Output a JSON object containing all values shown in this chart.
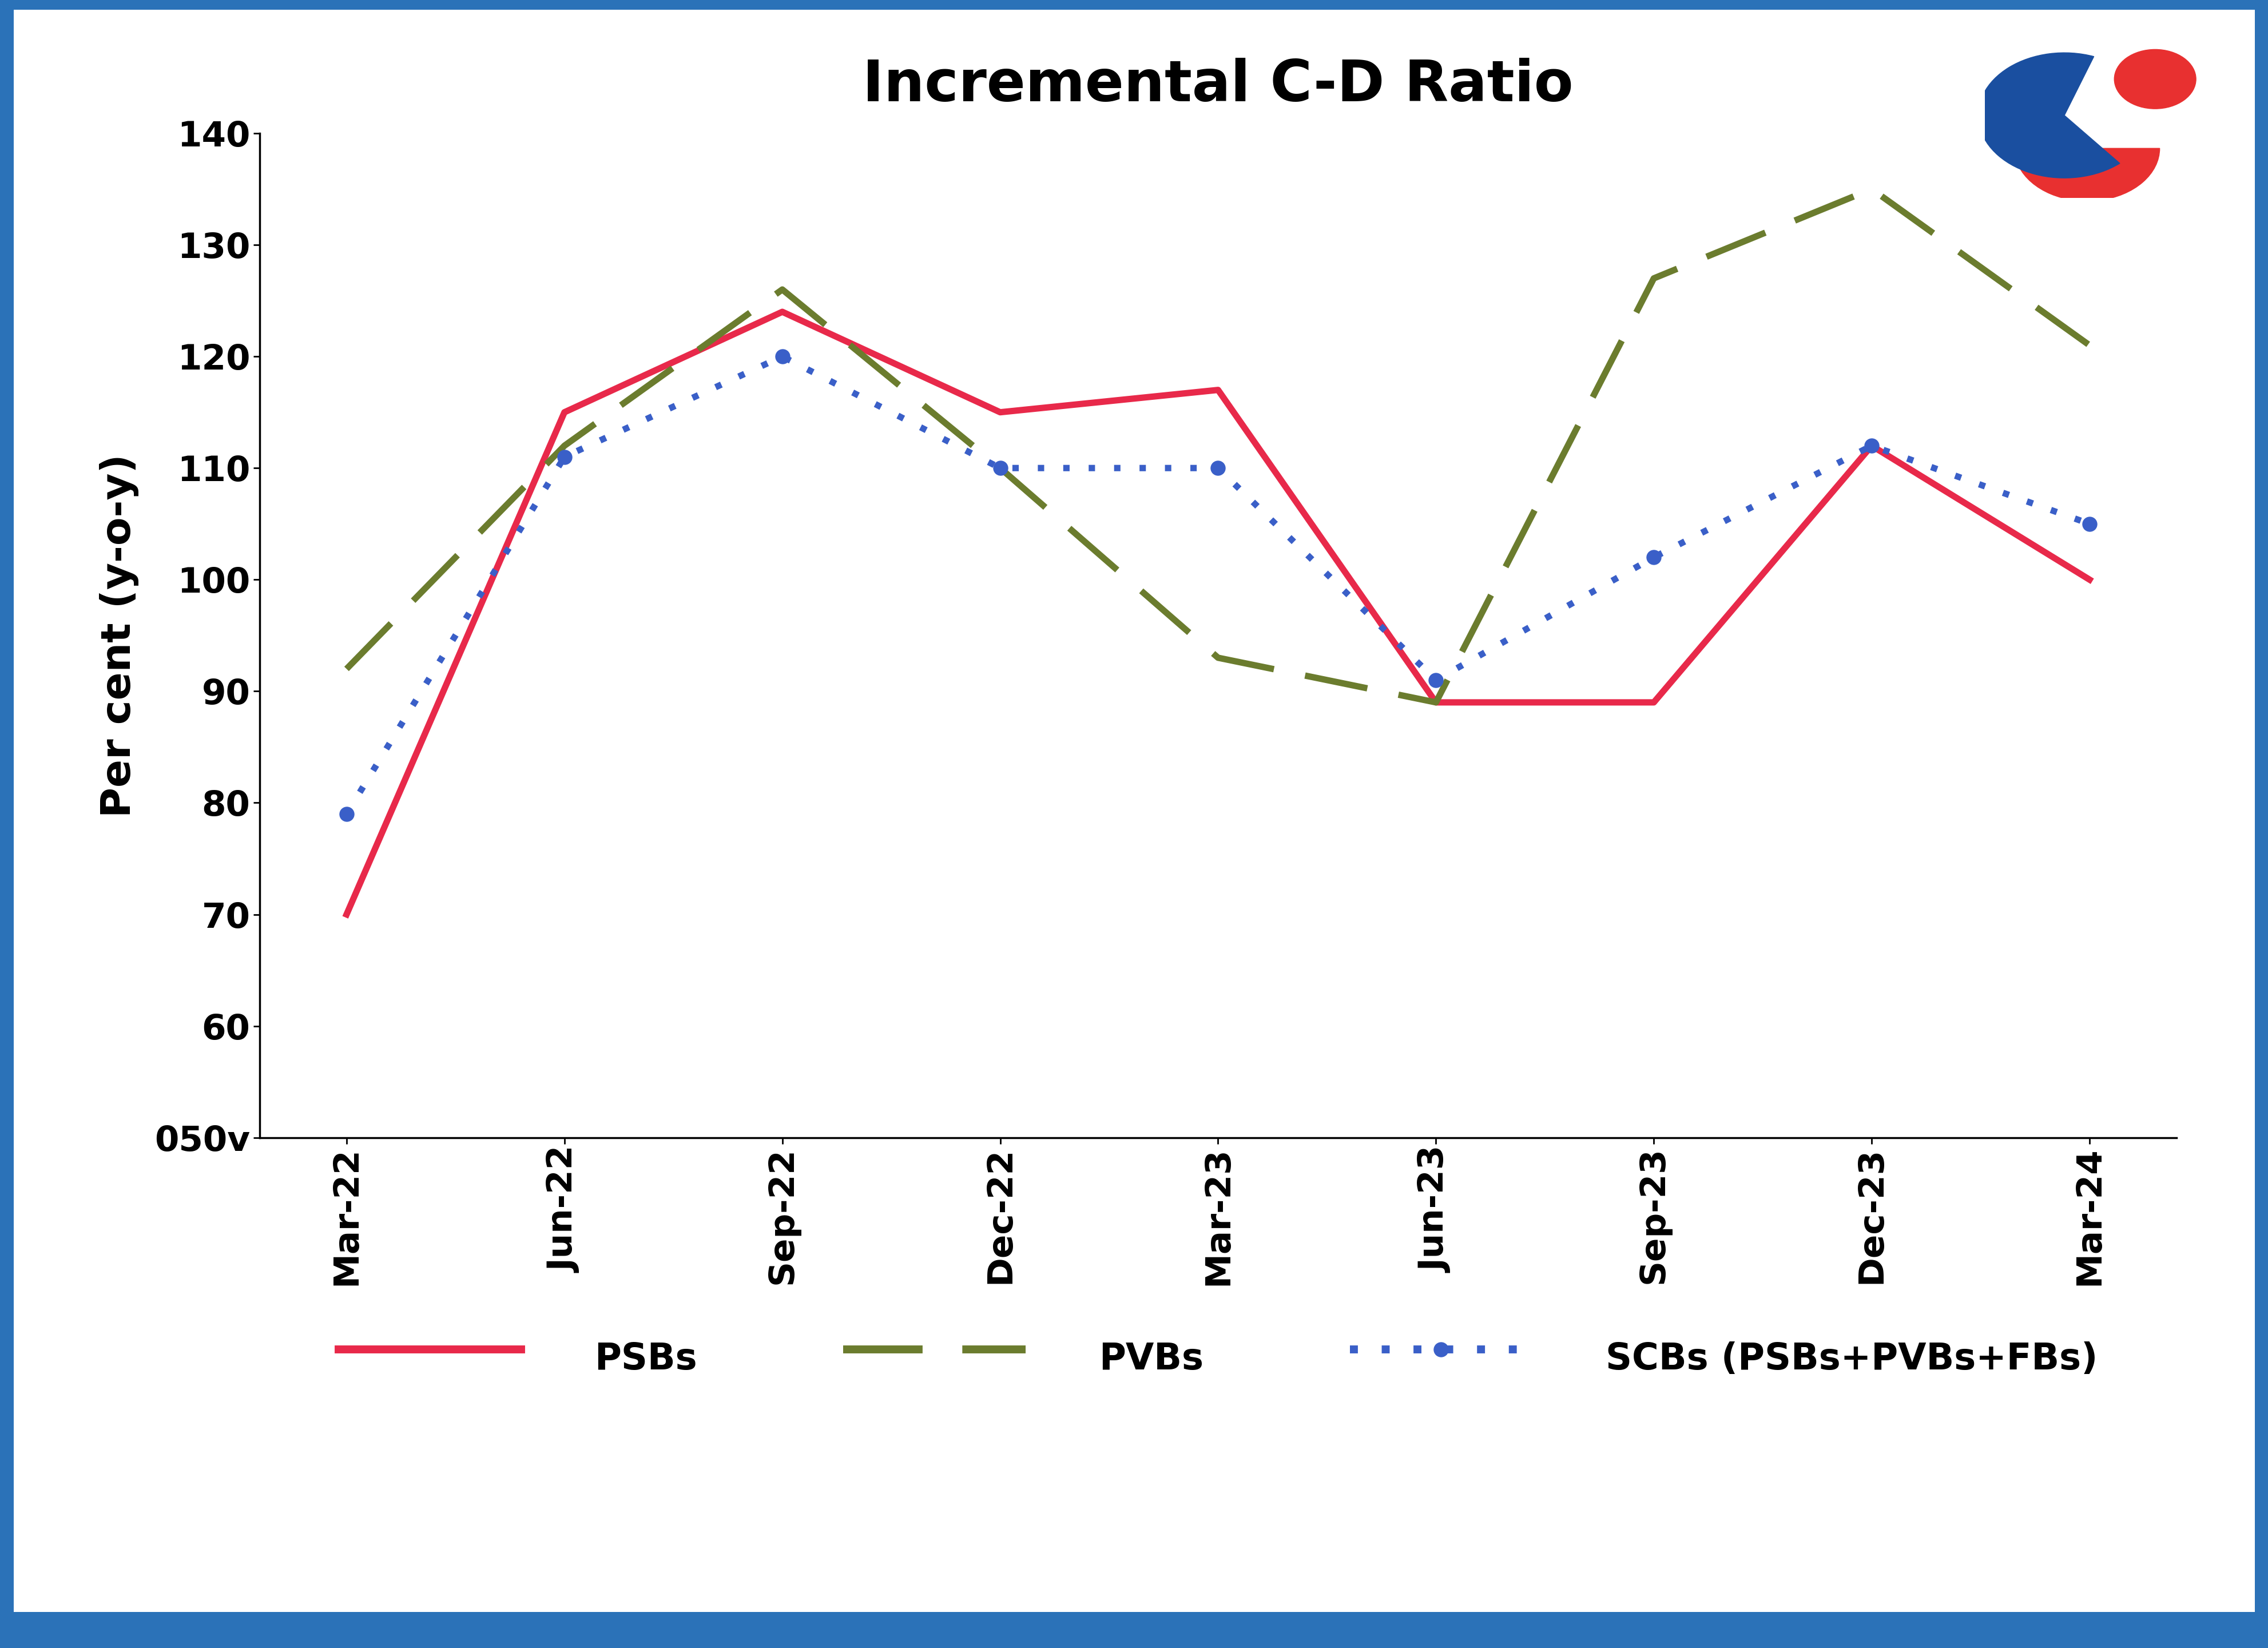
{
  "title": "Incremental C-D Ratio",
  "ylabel": "Per cent (y-o-y)",
  "x_labels": [
    "Mar-22",
    "Jun-22",
    "Sep-22",
    "Dec-22",
    "Mar-23",
    "Jun-23",
    "Sep-23",
    "Dec-23",
    "Mar-24"
  ],
  "psbs": [
    70,
    115,
    124,
    115,
    117,
    89,
    89,
    112,
    100
  ],
  "pvbs": [
    92,
    112,
    126,
    110,
    93,
    89,
    127,
    135,
    121
  ],
  "scbs": [
    79,
    111,
    120,
    110,
    110,
    91,
    102,
    112,
    105
  ],
  "psbs_color": "#e8294a",
  "pvbs_color": "#6b7c2e",
  "scbs_color": "#3a5fc8",
  "ylim_min": 50,
  "ylim_max": 140,
  "yticks": [
    50,
    60,
    70,
    80,
    90,
    100,
    110,
    120,
    130,
    140
  ],
  "ytick_labels": [
    "050v",
    "60",
    "70",
    "80",
    "90",
    "100",
    "110",
    "120",
    "130",
    "140"
  ],
  "background_color": "#ffffff",
  "border_color": "#2b72b8",
  "title_fontsize": 72,
  "label_fontsize": 52,
  "tick_fontsize": 44,
  "legend_fontsize": 46,
  "line_width": 8,
  "dot_size": 18
}
